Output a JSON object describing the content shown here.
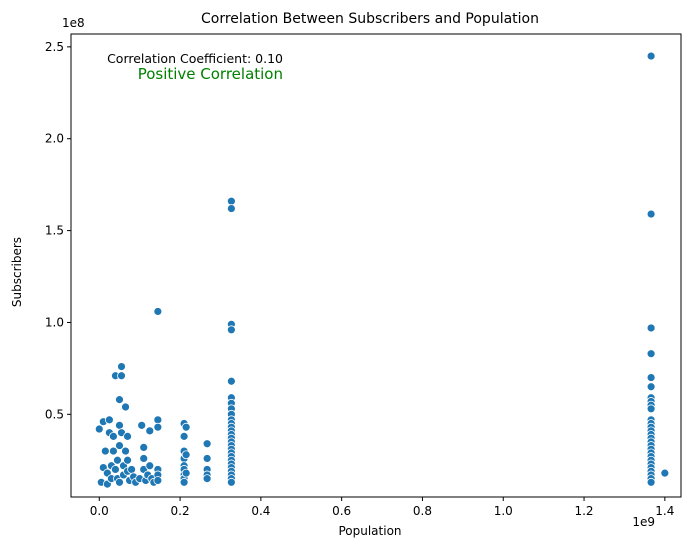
{
  "chart_data": {
    "type": "scatter",
    "title": "Correlation Between Subscribers and Population",
    "xlabel": "Population",
    "ylabel": "Subscribers",
    "x_exponent_label": "1e9",
    "y_exponent_label": "1e8",
    "xlim": [
      -0.07,
      1.44
    ],
    "ylim": [
      0.05,
      2.57
    ],
    "x_ticks": [
      0.0,
      0.2,
      0.4,
      0.6,
      0.8,
      1.0,
      1.2,
      1.4
    ],
    "x_tick_labels": [
      "0.0",
      "0.2",
      "0.4",
      "0.6",
      "0.8",
      "1.0",
      "1.2",
      "1.4"
    ],
    "y_ticks": [
      0.5,
      1.0,
      1.5,
      2.0,
      2.5
    ],
    "y_tick_labels": [
      "0.5",
      "1.0",
      "1.5",
      "2.0",
      "2.5"
    ],
    "grid": false,
    "legend": "none",
    "annotations": [
      {
        "text": "Correlation Coefficient: 0.10",
        "color": "#000000"
      },
      {
        "text": "Positive Correlation",
        "color": "#008000"
      }
    ],
    "point_color": "#1f77b4",
    "points": [
      [
        0.0,
        0.42
      ],
      [
        0.005,
        0.13
      ],
      [
        0.01,
        0.21
      ],
      [
        0.01,
        0.46
      ],
      [
        0.015,
        0.3
      ],
      [
        0.02,
        0.18
      ],
      [
        0.02,
        0.12
      ],
      [
        0.025,
        0.47
      ],
      [
        0.025,
        0.4
      ],
      [
        0.03,
        0.15
      ],
      [
        0.03,
        0.22
      ],
      [
        0.035,
        0.3
      ],
      [
        0.035,
        0.38
      ],
      [
        0.04,
        0.71
      ],
      [
        0.04,
        0.2
      ],
      [
        0.045,
        0.15
      ],
      [
        0.045,
        0.25
      ],
      [
        0.05,
        0.58
      ],
      [
        0.05,
        0.33
      ],
      [
        0.05,
        0.13
      ],
      [
        0.05,
        0.44
      ],
      [
        0.055,
        0.76
      ],
      [
        0.055,
        0.71
      ],
      [
        0.055,
        0.4
      ],
      [
        0.06,
        0.22
      ],
      [
        0.06,
        0.17
      ],
      [
        0.065,
        0.54
      ],
      [
        0.065,
        0.3
      ],
      [
        0.07,
        0.38
      ],
      [
        0.07,
        0.19
      ],
      [
        0.07,
        0.25
      ],
      [
        0.075,
        0.14
      ],
      [
        0.08,
        0.2
      ],
      [
        0.085,
        0.16
      ],
      [
        0.09,
        0.13
      ],
      [
        0.1,
        0.15
      ],
      [
        0.105,
        0.44
      ],
      [
        0.11,
        0.32
      ],
      [
        0.11,
        0.26
      ],
      [
        0.11,
        0.2
      ],
      [
        0.115,
        0.14
      ],
      [
        0.12,
        0.17
      ],
      [
        0.125,
        0.41
      ],
      [
        0.125,
        0.22
      ],
      [
        0.13,
        0.15
      ],
      [
        0.135,
        0.13
      ],
      [
        0.145,
        1.06
      ],
      [
        0.145,
        0.47
      ],
      [
        0.145,
        0.43
      ],
      [
        0.145,
        0.2
      ],
      [
        0.145,
        0.17
      ],
      [
        0.145,
        0.14
      ],
      [
        0.21,
        0.45
      ],
      [
        0.21,
        0.38
      ],
      [
        0.21,
        0.3
      ],
      [
        0.21,
        0.26
      ],
      [
        0.21,
        0.22
      ],
      [
        0.21,
        0.2
      ],
      [
        0.21,
        0.17
      ],
      [
        0.21,
        0.15
      ],
      [
        0.21,
        0.13
      ],
      [
        0.215,
        0.43
      ],
      [
        0.215,
        0.28
      ],
      [
        0.215,
        0.18
      ],
      [
        0.267,
        0.34
      ],
      [
        0.267,
        0.26
      ],
      [
        0.267,
        0.2
      ],
      [
        0.267,
        0.17
      ],
      [
        0.267,
        0.15
      ],
      [
        0.327,
        1.66
      ],
      [
        0.327,
        1.62
      ],
      [
        0.327,
        0.99
      ],
      [
        0.327,
        0.96
      ],
      [
        0.327,
        0.68
      ],
      [
        0.327,
        0.59
      ],
      [
        0.327,
        0.56
      ],
      [
        0.327,
        0.53
      ],
      [
        0.327,
        0.5
      ],
      [
        0.327,
        0.47
      ],
      [
        0.327,
        0.45
      ],
      [
        0.327,
        0.43
      ],
      [
        0.327,
        0.41
      ],
      [
        0.327,
        0.39
      ],
      [
        0.327,
        0.37
      ],
      [
        0.327,
        0.35
      ],
      [
        0.327,
        0.33
      ],
      [
        0.327,
        0.31
      ],
      [
        0.327,
        0.29
      ],
      [
        0.327,
        0.27
      ],
      [
        0.327,
        0.25
      ],
      [
        0.327,
        0.23
      ],
      [
        0.327,
        0.21
      ],
      [
        0.327,
        0.19
      ],
      [
        0.327,
        0.17
      ],
      [
        0.327,
        0.15
      ],
      [
        0.327,
        0.13
      ],
      [
        1.366,
        2.45
      ],
      [
        1.366,
        1.59
      ],
      [
        1.366,
        0.97
      ],
      [
        1.366,
        0.83
      ],
      [
        1.366,
        0.7
      ],
      [
        1.366,
        0.65
      ],
      [
        1.366,
        0.59
      ],
      [
        1.366,
        0.57
      ],
      [
        1.366,
        0.55
      ],
      [
        1.366,
        0.53
      ],
      [
        1.366,
        0.47
      ],
      [
        1.366,
        0.45
      ],
      [
        1.366,
        0.43
      ],
      [
        1.366,
        0.41
      ],
      [
        1.366,
        0.39
      ],
      [
        1.366,
        0.37
      ],
      [
        1.366,
        0.35
      ],
      [
        1.366,
        0.33
      ],
      [
        1.366,
        0.31
      ],
      [
        1.366,
        0.29
      ],
      [
        1.366,
        0.27
      ],
      [
        1.366,
        0.25
      ],
      [
        1.366,
        0.23
      ],
      [
        1.366,
        0.21
      ],
      [
        1.366,
        0.19
      ],
      [
        1.366,
        0.17
      ],
      [
        1.366,
        0.15
      ],
      [
        1.366,
        0.13
      ],
      [
        1.4,
        0.18
      ]
    ]
  }
}
